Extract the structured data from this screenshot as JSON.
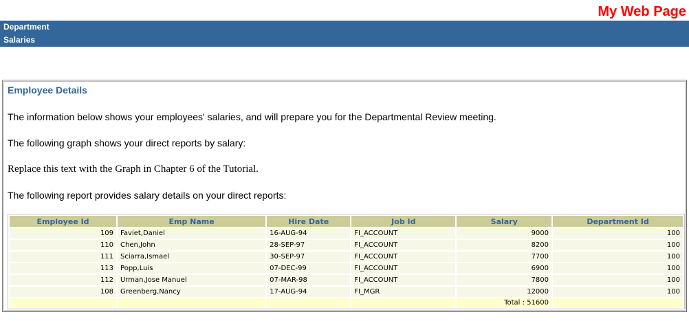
{
  "page": {
    "title": "My Web Page",
    "title_color": "#FF0000",
    "background_color": "#FFFFFF"
  },
  "banner": {
    "line1": "Department",
    "line2": "Salaries",
    "bg_color": "#336699",
    "text_color": "#FFFFFF"
  },
  "content": {
    "heading": "Employee Details",
    "heading_color": "#336699",
    "paragraph1": "The information below shows your employees' salaries, and will prepare you for the Departmental Review meeting.",
    "paragraph2": "The following graph shows your direct reports by salary:",
    "placeholder_text": "Replace this text with the Graph in Chapter 6 of the Tutorial.",
    "paragraph3": "The following report provides salary details on your direct reports:"
  },
  "table": {
    "headers": [
      "Employee Id",
      "Emp Name",
      "Hire Date",
      "Job Id",
      "Salary",
      "Department Id"
    ],
    "rows": [
      [
        "109",
        "Faviet,Daniel",
        "16-AUG-94",
        "FI_ACCOUNT",
        "9000",
        "100"
      ],
      [
        "110",
        "Chen,John",
        "28-SEP-97",
        "FI_ACCOUNT",
        "8200",
        "100"
      ],
      [
        "111",
        "Sciarra,Ismael",
        "30-SEP-97",
        "FI_ACCOUNT",
        "7700",
        "100"
      ],
      [
        "113",
        "Popp,Luis",
        "07-DEC-99",
        "FI_ACCOUNT",
        "6900",
        "100"
      ],
      [
        "112",
        "Urman,Jose Manuel",
        "07-MAR-98",
        "FI_ACCOUNT",
        "7800",
        "100"
      ],
      [
        "108",
        "Greenberg,Nancy",
        "17-AUG-94",
        "FI_MGR",
        "12000",
        "100"
      ]
    ],
    "total_label": "Total : 51600",
    "total_value": 51600,
    "colors": {
      "header_bg": "#CCCC99",
      "header_text": "#336699",
      "row_bg": "#F7F7E7",
      "total_row_bg": "#FFFFCC",
      "grid_gap": "#FFFFFF"
    }
  }
}
